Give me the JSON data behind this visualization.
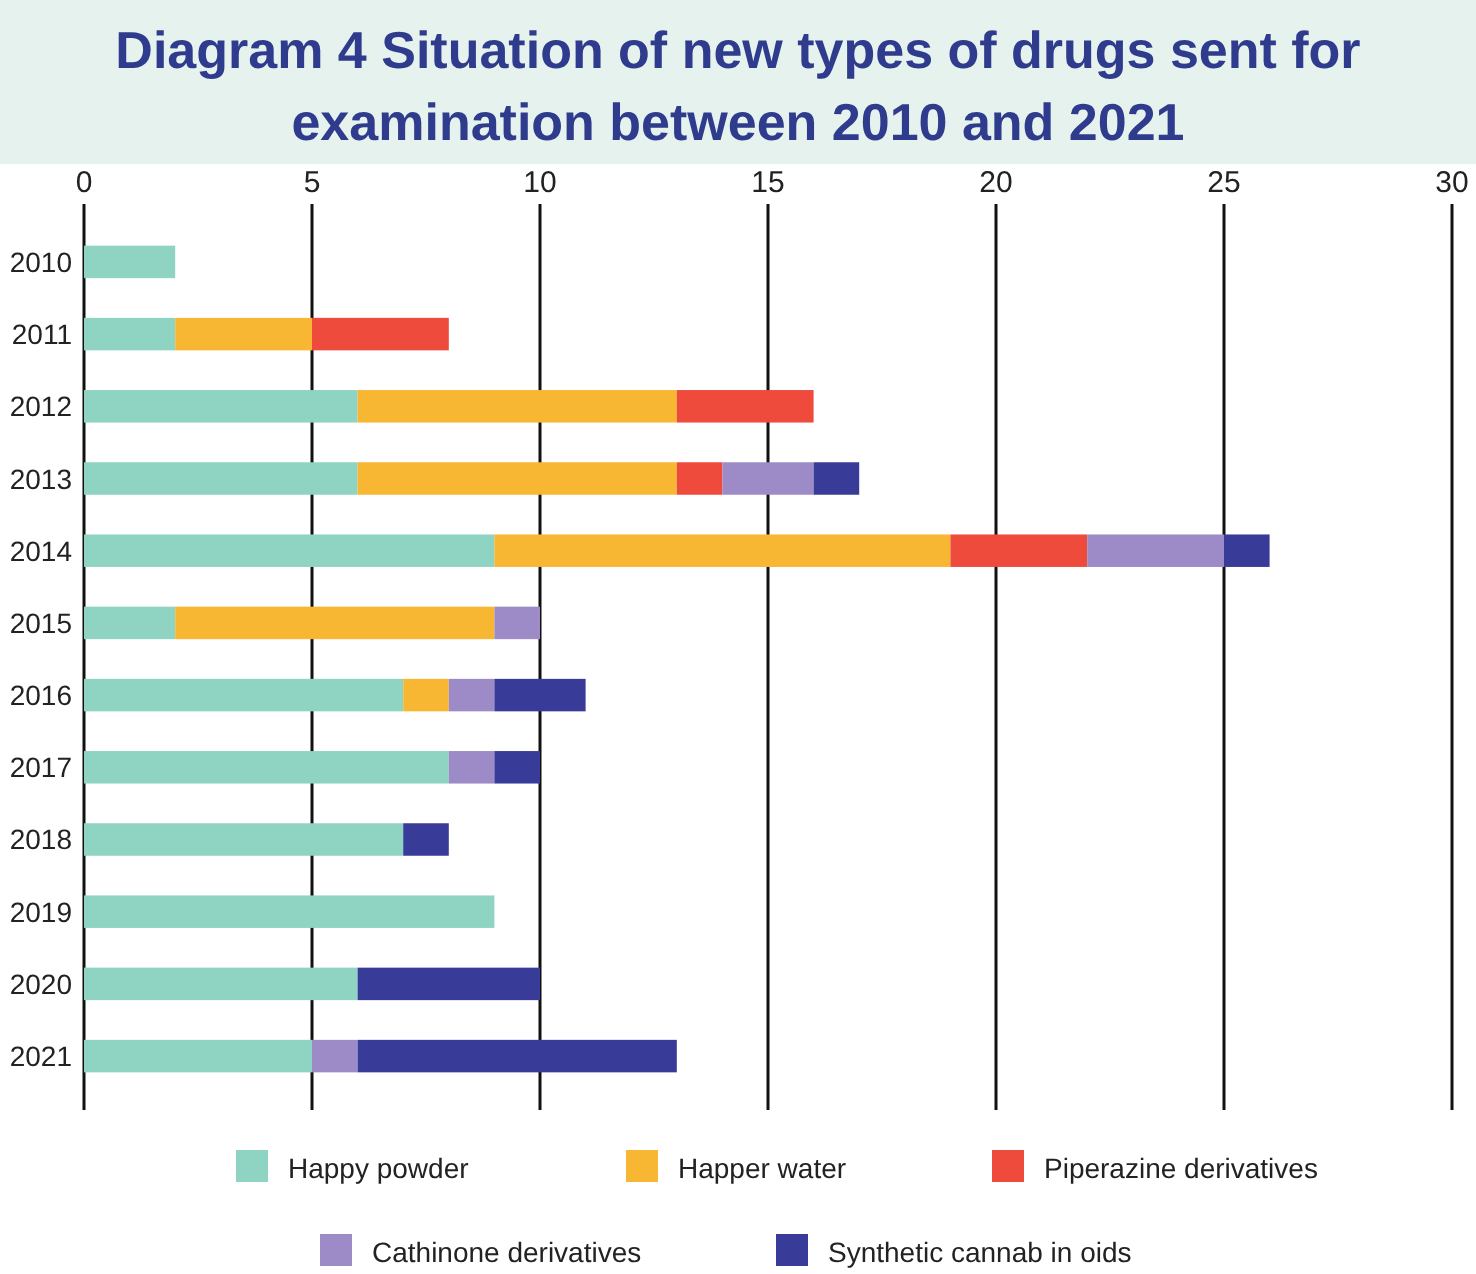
{
  "chart_data": {
    "type": "bar",
    "orientation": "horizontal",
    "stacked": true,
    "title": "Diagram 4  Situation of new types of drugs sent for examination between 2010 and 2021",
    "categories": [
      "2010",
      "2011",
      "2012",
      "2013",
      "2014",
      "2015",
      "2016",
      "2017",
      "2018",
      "2019",
      "2020",
      "2021"
    ],
    "series": [
      {
        "name": "Happy powder",
        "color": "#8fd3c2",
        "values": [
          2,
          2,
          6,
          6,
          9,
          2,
          7,
          8,
          7,
          9,
          6,
          5
        ]
      },
      {
        "name": "Happer water",
        "color": "#f7b733",
        "values": [
          null,
          3,
          7,
          7,
          10,
          7,
          1,
          null,
          null,
          null,
          null,
          null
        ]
      },
      {
        "name": "Piperazine derivatives",
        "color": "#ee4b3c",
        "values": [
          null,
          3,
          3,
          1,
          3,
          null,
          null,
          null,
          null,
          null,
          null,
          null
        ]
      },
      {
        "name": "Cathinone derivatives",
        "color": "#9c8bc6",
        "values": [
          null,
          null,
          null,
          2,
          3,
          1,
          1,
          1,
          null,
          null,
          null,
          1
        ]
      },
      {
        "name": "Synthetic cannab in oids",
        "color": "#393b98",
        "values": [
          null,
          null,
          null,
          1,
          1,
          null,
          2,
          1,
          1,
          null,
          4,
          7
        ]
      }
    ],
    "xlim": [
      0,
      30
    ],
    "xticks": [
      0,
      5,
      10,
      15,
      20,
      25,
      30
    ],
    "grid": "x",
    "legend": "bottom"
  }
}
